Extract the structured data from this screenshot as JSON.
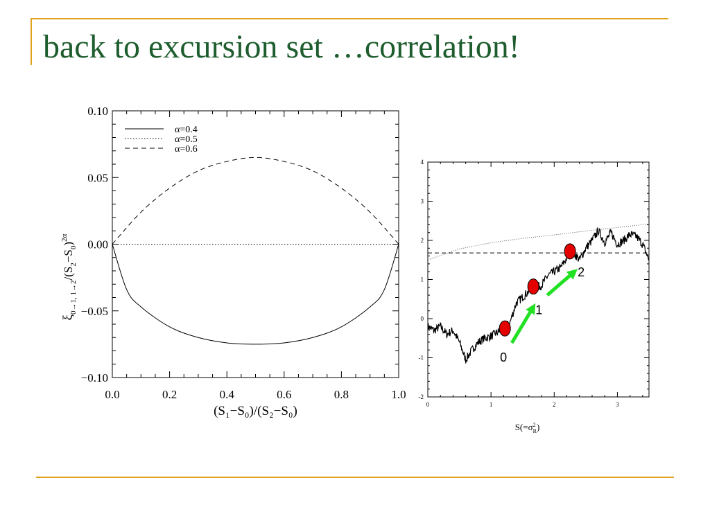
{
  "slide": {
    "title": "back to excursion set …correlation!"
  },
  "colors": {
    "title": "#1e5d2e",
    "frame": "#e0a320",
    "marker": "#e50000",
    "arrow": "#22e022"
  },
  "chart_data": [
    {
      "type": "line",
      "ylabel_main": "ξ",
      "ylabel_sub": "0→1, 1→2",
      "ylabel_rest": "/(S",
      "ylabel_sub2": "2",
      "ylabel_mid": "−S",
      "ylabel_sub3": "0",
      "ylabel_end": ")",
      "ylabel_sup": "2α",
      "xlabel": "(S₁−S₀)/(S₂−S₀)",
      "xlim": [
        0,
        1
      ],
      "ylim": [
        -0.1,
        0.1
      ],
      "xticks": [
        "0.0",
        "0.2",
        "0.4",
        "0.6",
        "0.8",
        "1.0"
      ],
      "yticks": [
        "0.10",
        "0.05",
        "0.00",
        "−0.05",
        "−0.10"
      ],
      "legend": {
        "placement": "top-left",
        "entries": [
          {
            "label": "α=0.4",
            "style": "solid"
          },
          {
            "label": "α=0.5",
            "style": "dotted"
          },
          {
            "label": "α=0.6",
            "style": "dashed"
          }
        ]
      },
      "series": [
        {
          "name": "α=0.4",
          "style": "solid",
          "x": [
            0,
            0.05,
            0.1,
            0.2,
            0.3,
            0.4,
            0.5,
            0.6,
            0.7,
            0.8,
            0.9,
            0.95,
            1
          ],
          "y": [
            0,
            -0.034,
            -0.047,
            -0.062,
            -0.07,
            -0.074,
            -0.075,
            -0.074,
            -0.07,
            -0.062,
            -0.047,
            -0.034,
            0
          ]
        },
        {
          "name": "α=0.5",
          "style": "dotted",
          "x": [
            0,
            1
          ],
          "y": [
            0,
            0
          ]
        },
        {
          "name": "α=0.6",
          "style": "dashed",
          "x": [
            0,
            0.1,
            0.2,
            0.3,
            0.4,
            0.5,
            0.6,
            0.7,
            0.8,
            0.9,
            1
          ],
          "y": [
            0,
            0.024,
            0.042,
            0.055,
            0.062,
            0.065,
            0.062,
            0.055,
            0.042,
            0.024,
            0
          ]
        }
      ]
    },
    {
      "type": "line",
      "xlabel_main": "S(=σ",
      "xlabel_sub": "R",
      "xlabel_sup": "2",
      "xlabel_end": ")",
      "xlim": [
        0,
        3.5
      ],
      "ylim": [
        -2,
        4
      ],
      "xticks": [
        "0",
        "1",
        "2",
        "3"
      ],
      "yticks": [
        "4",
        "3",
        "2",
        "1",
        "0",
        "-1",
        "-2"
      ],
      "barrier_constant": 1.68,
      "barrier_dotted": {
        "x": [
          0,
          0.5,
          1,
          1.5,
          2,
          2.5,
          3,
          3.5
        ],
        "y": [
          1.5,
          1.78,
          1.94,
          2.05,
          2.14,
          2.24,
          2.33,
          2.42
        ]
      },
      "walk": {
        "x": [
          0,
          0.1,
          0.2,
          0.3,
          0.4,
          0.5,
          0.6,
          0.7,
          0.8,
          0.9,
          1.0,
          1.1,
          1.2,
          1.3,
          1.4,
          1.5,
          1.6,
          1.7,
          1.8,
          1.9,
          2.0,
          2.1,
          2.2,
          2.3,
          2.4,
          2.5,
          2.6,
          2.7,
          2.8,
          2.9,
          3.0,
          3.1,
          3.2,
          3.3,
          3.4,
          3.5
        ],
        "y": [
          -0.2,
          -0.3,
          -0.2,
          -0.4,
          -0.3,
          -0.6,
          -1.05,
          -0.8,
          -0.6,
          -0.5,
          -0.45,
          -0.35,
          -0.25,
          -0.1,
          0.4,
          0.55,
          0.7,
          0.8,
          0.85,
          1.1,
          1.2,
          1.3,
          1.55,
          1.7,
          1.5,
          1.8,
          2.0,
          2.25,
          1.95,
          2.2,
          1.9,
          2.0,
          2.15,
          2.1,
          1.9,
          1.5
        ]
      },
      "markers": [
        {
          "label": "0",
          "x": 1.22,
          "y": -0.25
        },
        {
          "label": "1",
          "x": 1.67,
          "y": 0.82
        },
        {
          "label": "2",
          "x": 2.25,
          "y": 1.72
        }
      ],
      "arrows": [
        {
          "from": [
            1.33,
            -0.62
          ],
          "to": [
            1.67,
            0.3
          ]
        },
        {
          "from": [
            1.89,
            0.6
          ],
          "to": [
            2.32,
            1.2
          ]
        }
      ]
    }
  ]
}
